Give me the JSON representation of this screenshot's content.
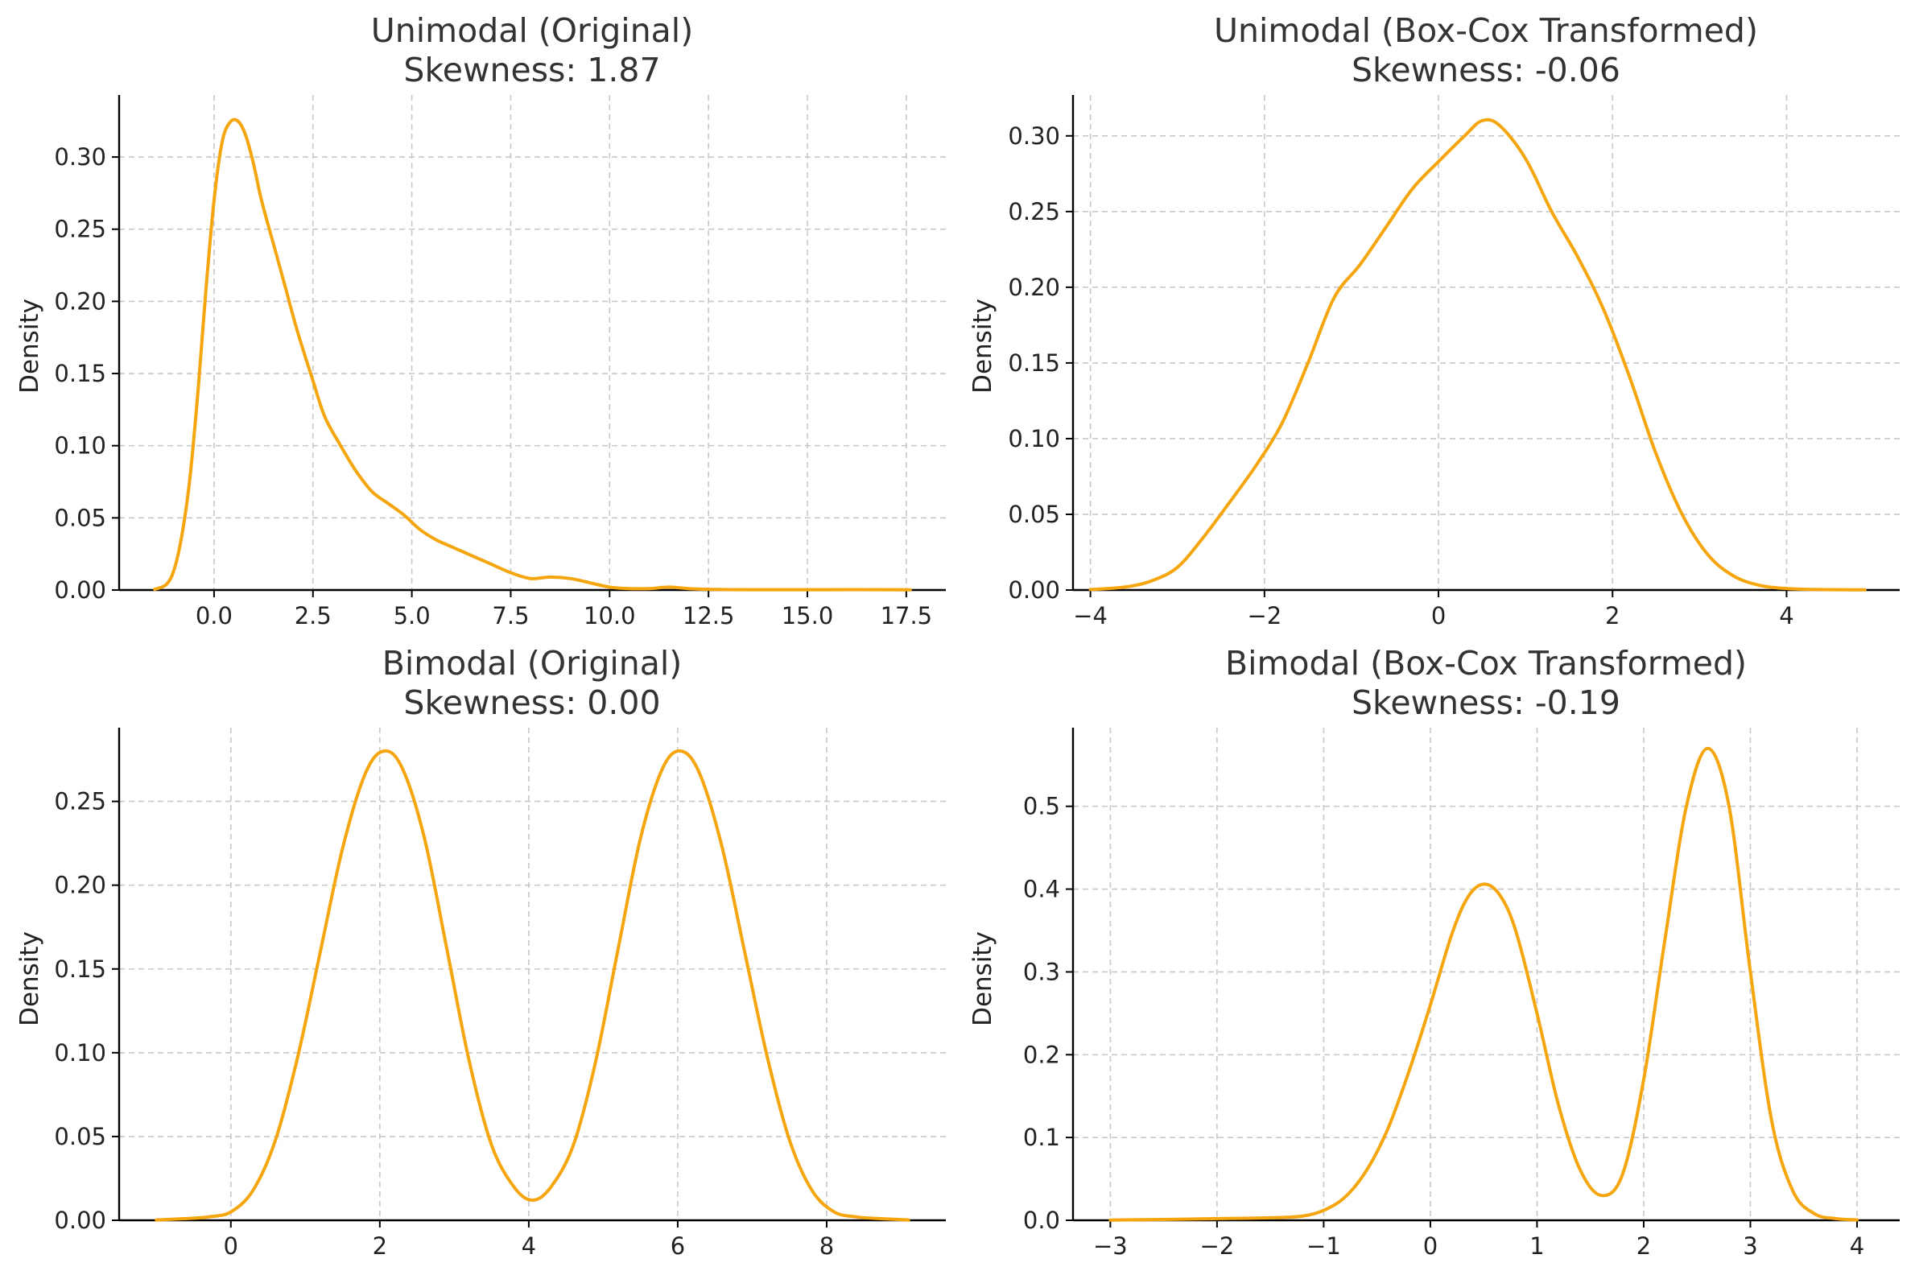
{
  "colors": {
    "line": "#f5a60f",
    "grid": "#c8c8c8",
    "axis": "#000000",
    "title": "#333333"
  },
  "chart_data": [
    {
      "type": "line",
      "title": [
        "Unimodal (Original)",
        "Skewness: 1.87"
      ],
      "xlabel": "",
      "ylabel": "Density",
      "xlim": [
        -2.4,
        18.5
      ],
      "ylim": [
        0,
        0.343
      ],
      "xticks": [
        0.0,
        2.5,
        5.0,
        7.5,
        10.0,
        12.5,
        15.0,
        17.5
      ],
      "xtick_labels": [
        "0.0",
        "2.5",
        "5.0",
        "7.5",
        "10.0",
        "12.5",
        "15.0",
        "17.5"
      ],
      "yticks": [
        0.0,
        0.05,
        0.1,
        0.15,
        0.2,
        0.25,
        0.3
      ],
      "ytick_labels": [
        "0.00",
        "0.05",
        "0.10",
        "0.15",
        "0.20",
        "0.25",
        "0.30"
      ],
      "grid": true,
      "series": [
        {
          "name": "density",
          "x": [
            -1.5,
            -1.2,
            -1.0,
            -0.8,
            -0.6,
            -0.4,
            -0.2,
            0.0,
            0.2,
            0.4,
            0.6,
            0.8,
            1.0,
            1.2,
            1.5,
            1.8,
            2.1,
            2.5,
            2.8,
            3.2,
            3.6,
            4.0,
            4.4,
            4.8,
            5.2,
            5.6,
            6.0,
            6.5,
            7.0,
            7.5,
            8.0,
            8.5,
            9.0,
            9.5,
            10.0,
            10.5,
            11.0,
            11.5,
            12.0,
            12.5,
            13.0,
            14.0,
            15.0,
            16.0,
            17.0,
            17.6
          ],
          "y": [
            0.0005,
            0.004,
            0.015,
            0.04,
            0.08,
            0.14,
            0.21,
            0.27,
            0.31,
            0.324,
            0.325,
            0.315,
            0.295,
            0.27,
            0.24,
            0.21,
            0.18,
            0.145,
            0.12,
            0.1,
            0.082,
            0.068,
            0.06,
            0.052,
            0.042,
            0.035,
            0.03,
            0.024,
            0.018,
            0.012,
            0.008,
            0.009,
            0.008,
            0.005,
            0.002,
            0.001,
            0.001,
            0.002,
            0.001,
            0.0005,
            0.0003,
            0.0002,
            0.0002,
            0.0003,
            0.0002,
            0.0001
          ]
        }
      ]
    },
    {
      "type": "line",
      "title": [
        "Unimodal (Box-Cox Transformed)",
        "Skewness: -0.06"
      ],
      "xlabel": "",
      "ylabel": "Density",
      "xlim": [
        -4.2,
        5.3
      ],
      "ylim": [
        0,
        0.327
      ],
      "xticks": [
        -4,
        -2,
        0,
        2,
        4
      ],
      "xtick_labels": [
        "−4",
        "−2",
        "0",
        "2",
        "4"
      ],
      "yticks": [
        0.0,
        0.05,
        0.1,
        0.15,
        0.2,
        0.25,
        0.3
      ],
      "ytick_labels": [
        "0.00",
        "0.05",
        "0.10",
        "0.15",
        "0.20",
        "0.25",
        "0.30"
      ],
      "grid": true,
      "series": [
        {
          "name": "density",
          "x": [
            -4.0,
            -3.6,
            -3.3,
            -3.0,
            -2.7,
            -2.4,
            -2.1,
            -1.8,
            -1.5,
            -1.2,
            -0.9,
            -0.6,
            -0.3,
            0.0,
            0.3,
            0.5,
            0.7,
            1.0,
            1.3,
            1.6,
            1.9,
            2.2,
            2.5,
            2.8,
            3.1,
            3.4,
            3.7,
            4.0,
            4.4,
            4.9
          ],
          "y": [
            0.0003,
            0.002,
            0.006,
            0.015,
            0.035,
            0.058,
            0.082,
            0.11,
            0.15,
            0.193,
            0.215,
            0.24,
            0.265,
            0.283,
            0.3,
            0.31,
            0.307,
            0.285,
            0.25,
            0.22,
            0.185,
            0.14,
            0.09,
            0.05,
            0.023,
            0.009,
            0.003,
            0.001,
            0.0003,
            0.0001
          ]
        }
      ]
    },
    {
      "type": "line",
      "title": [
        "Bimodal (Original)",
        "Skewness: 0.00"
      ],
      "xlabel": "",
      "ylabel": "Density",
      "xlim": [
        -1.5,
        9.6
      ],
      "ylim": [
        0,
        0.294
      ],
      "xticks": [
        0,
        2,
        4,
        6,
        8
      ],
      "xtick_labels": [
        "0",
        "2",
        "4",
        "6",
        "8"
      ],
      "yticks": [
        0.0,
        0.05,
        0.1,
        0.15,
        0.2,
        0.25
      ],
      "ytick_labels": [
        "0.00",
        "0.05",
        "0.10",
        "0.15",
        "0.20",
        "0.25"
      ],
      "grid": true,
      "series": [
        {
          "name": "density",
          "x": [
            -1.0,
            -0.6,
            -0.3,
            0.0,
            0.3,
            0.6,
            0.9,
            1.2,
            1.5,
            1.8,
            2.05,
            2.3,
            2.6,
            2.9,
            3.2,
            3.5,
            3.8,
            4.05,
            4.3,
            4.6,
            4.9,
            5.2,
            5.5,
            5.8,
            6.05,
            6.3,
            6.6,
            6.9,
            7.2,
            7.5,
            7.8,
            8.1,
            8.4,
            8.7,
            9.1
          ],
          "y": [
            0.0002,
            0.001,
            0.002,
            0.005,
            0.018,
            0.048,
            0.098,
            0.16,
            0.222,
            0.266,
            0.28,
            0.27,
            0.228,
            0.162,
            0.095,
            0.045,
            0.02,
            0.012,
            0.02,
            0.045,
            0.095,
            0.162,
            0.228,
            0.27,
            0.28,
            0.266,
            0.222,
            0.16,
            0.098,
            0.048,
            0.018,
            0.005,
            0.002,
            0.001,
            0.0002
          ]
        }
      ]
    },
    {
      "type": "line",
      "title": [
        "Bimodal (Box-Cox Transformed)",
        "Skewness: -0.19"
      ],
      "xlabel": "",
      "ylabel": "Density",
      "xlim": [
        -3.35,
        4.4
      ],
      "ylim": [
        0,
        0.595
      ],
      "xticks": [
        -3,
        -2,
        -1,
        0,
        1,
        2,
        3,
        4
      ],
      "xtick_labels": [
        "−3",
        "−2",
        "−1",
        "0",
        "1",
        "2",
        "3",
        "4"
      ],
      "yticks": [
        0.0,
        0.1,
        0.2,
        0.3,
        0.4,
        0.5
      ],
      "ytick_labels": [
        "0.0",
        "0.1",
        "0.2",
        "0.3",
        "0.4",
        "0.5"
      ],
      "grid": true,
      "series": [
        {
          "name": "density",
          "x": [
            -3.0,
            -2.5,
            -2.0,
            -1.5,
            -1.2,
            -1.0,
            -0.8,
            -0.6,
            -0.4,
            -0.2,
            0.0,
            0.2,
            0.35,
            0.5,
            0.65,
            0.8,
            1.0,
            1.2,
            1.4,
            1.6,
            1.8,
            2.0,
            2.2,
            2.4,
            2.6,
            2.8,
            3.0,
            3.2,
            3.4,
            3.6,
            3.8,
            4.0
          ],
          "y": [
            0.0003,
            0.001,
            0.002,
            0.003,
            0.005,
            0.012,
            0.028,
            0.06,
            0.11,
            0.18,
            0.26,
            0.345,
            0.39,
            0.406,
            0.393,
            0.35,
            0.25,
            0.14,
            0.062,
            0.03,
            0.055,
            0.17,
            0.34,
            0.5,
            0.57,
            0.5,
            0.3,
            0.12,
            0.035,
            0.008,
            0.002,
            0.0005
          ]
        }
      ]
    }
  ]
}
